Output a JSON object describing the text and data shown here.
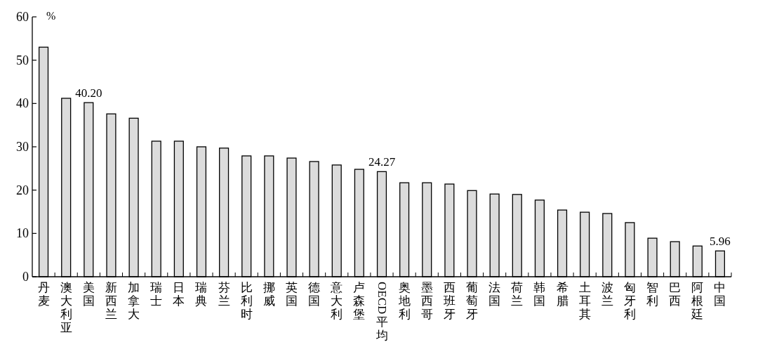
{
  "chart_data": {
    "type": "bar",
    "ylabel": "%",
    "categories": [
      "丹麦",
      "澳大利亚",
      "美国",
      "新西兰",
      "加拿大",
      "瑞士",
      "日本",
      "瑞典",
      "芬兰",
      "比利时",
      "挪威",
      "英国",
      "德国",
      "意大利",
      "卢森堡",
      "OECD平均",
      "奥地利",
      "墨西哥",
      "西班牙",
      "葡萄牙",
      "法国",
      "荷兰",
      "韩国",
      "希腊",
      "土耳其",
      "波兰",
      "匈牙利",
      "智利",
      "巴西",
      "阿根廷",
      "中国"
    ],
    "values": [
      53.0,
      41.2,
      40.2,
      37.6,
      36.6,
      31.3,
      31.3,
      30.0,
      29.7,
      27.9,
      27.9,
      27.4,
      26.6,
      25.8,
      24.8,
      24.27,
      21.7,
      21.7,
      21.4,
      19.9,
      19.1,
      19.0,
      17.7,
      15.4,
      14.9,
      14.6,
      12.5,
      8.9,
      8.1,
      7.1,
      5.96
    ],
    "value_labels": [
      null,
      null,
      "40.20",
      null,
      null,
      null,
      null,
      null,
      null,
      null,
      null,
      null,
      null,
      null,
      null,
      "24.27",
      null,
      null,
      null,
      null,
      null,
      null,
      null,
      null,
      null,
      null,
      null,
      null,
      null,
      null,
      "5.96"
    ],
    "color": "#dcdcdc",
    "ylim": [
      0,
      60
    ],
    "yticks": [
      0,
      10,
      20,
      30,
      40,
      50,
      60
    ]
  }
}
